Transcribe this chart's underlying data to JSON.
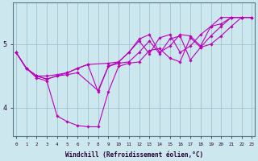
{
  "xlabel": "Windchill (Refroidissement éolien,°C)",
  "background_color": "#cce8ee",
  "line_color": "#bb00bb",
  "grid_color": "#99bbcc",
  "x_ticks": [
    0,
    1,
    2,
    3,
    4,
    5,
    6,
    7,
    8,
    9,
    10,
    11,
    12,
    13,
    14,
    15,
    16,
    17,
    18,
    19,
    20,
    21,
    22,
    23
  ],
  "y_ticks": [
    4,
    5
  ],
  "xlim": [
    -0.3,
    23.3
  ],
  "ylim": [
    3.55,
    5.65
  ],
  "series": [
    {
      "x": [
        0,
        1,
        2,
        3,
        4,
        5,
        6,
        7,
        8,
        9,
        10,
        11,
        12,
        13,
        14,
        15,
        16,
        17,
        18,
        19,
        20,
        21,
        22
      ],
      "y": [
        4.87,
        4.62,
        4.47,
        4.42,
        3.87,
        3.78,
        3.72,
        3.7,
        3.7,
        4.25,
        4.65,
        4.7,
        4.72,
        4.9,
        4.93,
        4.78,
        4.72,
        5.1,
        4.95,
        5.0,
        5.13,
        5.28,
        5.42
      ]
    },
    {
      "x": [
        0,
        1,
        2,
        3,
        4,
        5,
        6,
        8,
        9,
        10,
        11,
        12,
        13,
        14,
        15,
        16,
        17,
        18,
        19,
        20,
        21,
        22,
        23
      ],
      "y": [
        4.87,
        4.62,
        4.5,
        4.45,
        4.5,
        4.52,
        4.55,
        4.27,
        4.65,
        4.7,
        4.72,
        4.87,
        5.05,
        4.85,
        5.08,
        5.13,
        4.75,
        4.95,
        5.13,
        5.28,
        5.42,
        5.42,
        5.42
      ]
    },
    {
      "x": [
        0,
        1,
        2,
        3,
        4,
        5,
        6,
        7,
        9,
        10,
        11,
        12,
        13,
        14,
        15,
        16,
        17,
        18,
        19,
        20,
        21,
        22,
        23
      ],
      "y": [
        4.87,
        4.62,
        4.5,
        4.5,
        4.52,
        4.55,
        4.62,
        4.68,
        4.7,
        4.72,
        4.87,
        5.05,
        4.85,
        5.1,
        5.15,
        4.87,
        4.97,
        5.15,
        5.28,
        5.32,
        5.42,
        5.42,
        5.42
      ]
    },
    {
      "x": [
        0,
        1,
        2,
        3,
        4,
        5,
        6,
        7,
        8,
        9,
        10,
        11,
        12,
        13,
        14,
        15,
        16,
        17,
        18,
        19,
        20,
        21,
        22,
        23
      ],
      "y": [
        4.87,
        4.62,
        4.5,
        4.45,
        4.5,
        4.55,
        4.62,
        4.68,
        4.25,
        4.65,
        4.72,
        4.87,
        5.08,
        5.15,
        4.87,
        4.97,
        5.15,
        5.13,
        4.97,
        5.28,
        5.42,
        5.42,
        5.42,
        5.42
      ]
    }
  ]
}
